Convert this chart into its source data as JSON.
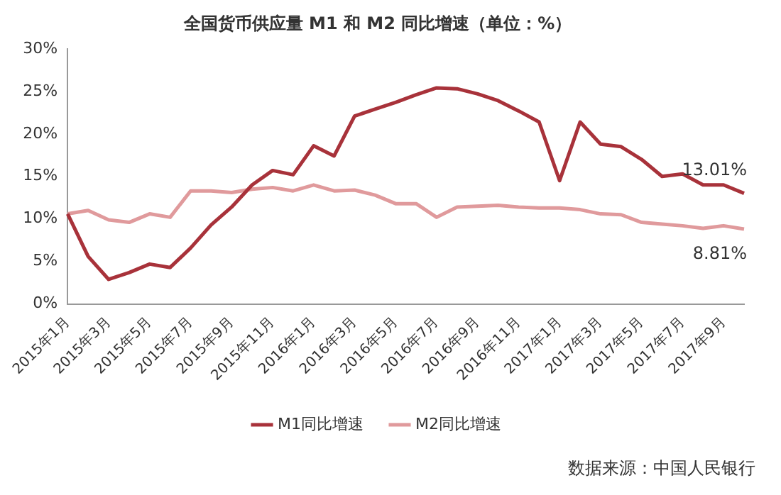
{
  "chart_data": {
    "type": "line",
    "title": "全国货币供应量 M1 和 M2 同比增速（单位：%）",
    "categories": [
      "2015年1月",
      null,
      "2015年3月",
      null,
      "2015年5月",
      null,
      "2015年7月",
      null,
      "2015年9月",
      null,
      "2015年11月",
      null,
      "2016年1月",
      null,
      "2016年3月",
      null,
      "2016年5月",
      null,
      "2016年7月",
      null,
      "2016年9月",
      null,
      "2016年11月",
      null,
      "2017年1月",
      null,
      "2017年3月",
      null,
      "2017年5月",
      null,
      "2017年7月",
      null,
      "2017年9月",
      null
    ],
    "series": [
      {
        "name": "M1同比增速",
        "color": "#a8323a",
        "values": [
          10.6,
          5.6,
          2.9,
          3.7,
          4.7,
          4.3,
          6.6,
          9.3,
          11.4,
          14.0,
          15.7,
          15.2,
          18.6,
          17.4,
          22.1,
          22.9,
          23.7,
          24.6,
          25.4,
          25.3,
          24.7,
          23.9,
          22.7,
          21.4,
          14.5,
          21.4,
          18.8,
          18.5,
          17.0,
          15.0,
          15.3,
          14.0,
          14.0,
          13.01
        ],
        "value_labels": [
          null,
          null,
          null,
          null,
          null,
          null,
          null,
          null,
          null,
          null,
          null,
          null,
          null,
          null,
          null,
          null,
          null,
          null,
          null,
          null,
          null,
          null,
          null,
          null,
          null,
          null,
          null,
          null,
          null,
          null,
          null,
          null,
          null,
          "13.01%"
        ]
      },
      {
        "name": "M2同比增速",
        "color": "#e09a9c",
        "values": [
          10.6,
          11.0,
          9.9,
          9.6,
          10.6,
          10.2,
          13.3,
          13.3,
          13.1,
          13.5,
          13.7,
          13.3,
          14.0,
          13.3,
          13.4,
          12.8,
          11.8,
          11.8,
          10.2,
          11.4,
          11.5,
          11.6,
          11.4,
          11.3,
          11.3,
          11.1,
          10.6,
          10.5,
          9.6,
          9.4,
          9.2,
          8.9,
          9.2,
          8.81
        ],
        "value_labels": [
          null,
          null,
          null,
          null,
          null,
          null,
          null,
          null,
          null,
          null,
          null,
          null,
          null,
          null,
          null,
          null,
          null,
          null,
          null,
          null,
          null,
          null,
          null,
          null,
          null,
          null,
          null,
          null,
          null,
          null,
          null,
          null,
          null,
          "8.81%"
        ]
      }
    ],
    "ylim": [
      0,
      30
    ],
    "yticks": [
      {
        "value": 0,
        "label": "0%"
      },
      {
        "value": 5,
        "label": "5%"
      },
      {
        "value": 10,
        "label": "10%"
      },
      {
        "value": 15,
        "label": "15%"
      },
      {
        "value": 20,
        "label": "20%"
      },
      {
        "value": 25,
        "label": "25%"
      },
      {
        "value": 30,
        "label": "30%"
      }
    ],
    "grid": false,
    "legend": "bottom",
    "marker": "none",
    "line_style": "solid",
    "annotations": [
      "数据来源：中国人民银行"
    ]
  }
}
